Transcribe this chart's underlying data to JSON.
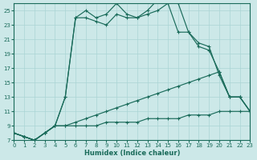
{
  "xlabel": "Humidex (Indice chaleur)",
  "bg_color": "#cce8e8",
  "grid_color": "#aad4d4",
  "line_color": "#1a6b5a",
  "xlim": [
    0,
    23
  ],
  "ylim": [
    7,
    26
  ],
  "yticks": [
    7,
    9,
    11,
    13,
    15,
    17,
    19,
    21,
    23,
    25
  ],
  "xticks": [
    0,
    1,
    2,
    3,
    4,
    5,
    6,
    7,
    8,
    9,
    10,
    11,
    12,
    13,
    14,
    15,
    16,
    17,
    18,
    19,
    20,
    21,
    22,
    23
  ],
  "lines": [
    {
      "x": [
        0,
        1,
        2,
        3,
        4,
        5,
        6,
        7,
        8,
        9,
        10,
        11,
        12,
        13,
        14,
        15,
        16,
        17,
        18,
        19,
        20,
        21,
        22,
        23
      ],
      "y": [
        8,
        7.5,
        7,
        8,
        9,
        13,
        24,
        25,
        24,
        24.5,
        26,
        24.5,
        24,
        25,
        26.5,
        26.5,
        26,
        22,
        20.5,
        20,
        16,
        13,
        13,
        11
      ]
    },
    {
      "x": [
        0,
        1,
        2,
        3,
        4,
        5,
        6,
        7,
        8,
        9,
        10,
        11,
        12,
        13,
        14,
        15,
        16,
        17,
        18,
        19,
        20,
        21,
        22,
        23
      ],
      "y": [
        8,
        7.5,
        7,
        8,
        9,
        13,
        24,
        24,
        23.5,
        23,
        24.5,
        24,
        24,
        24.5,
        25,
        26,
        22,
        22,
        20,
        19.5,
        16.5,
        13,
        13,
        11
      ]
    },
    {
      "x": [
        0,
        1,
        2,
        3,
        4,
        5,
        6,
        7,
        8,
        9,
        10,
        11,
        12,
        13,
        14,
        15,
        16,
        17,
        18,
        19,
        20,
        21,
        22,
        23
      ],
      "y": [
        8,
        7.5,
        7,
        8,
        9,
        9,
        9.5,
        10,
        10.5,
        11,
        11.5,
        12,
        12.5,
        13,
        13.5,
        14,
        14.5,
        15,
        15.5,
        16,
        16.5,
        13,
        13,
        11
      ]
    },
    {
      "x": [
        0,
        1,
        2,
        3,
        4,
        5,
        6,
        7,
        8,
        9,
        10,
        11,
        12,
        13,
        14,
        15,
        16,
        17,
        18,
        19,
        20,
        21,
        22,
        23
      ],
      "y": [
        8,
        7.5,
        7,
        8,
        9,
        9,
        9,
        9,
        9,
        9.5,
        9.5,
        9.5,
        9.5,
        10,
        10,
        10,
        10,
        10.5,
        10.5,
        10.5,
        11,
        11,
        11,
        11
      ]
    }
  ]
}
